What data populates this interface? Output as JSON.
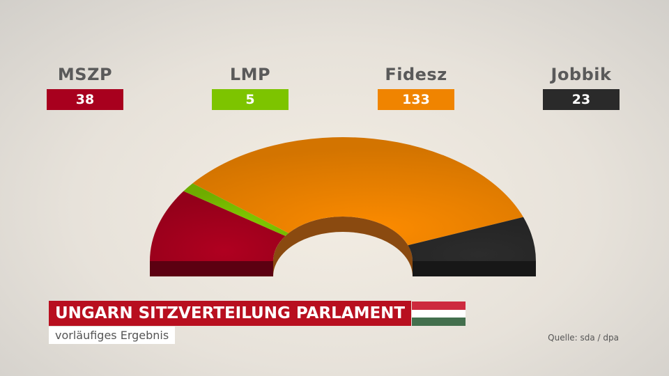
{
  "chart_data": {
    "type": "pie",
    "categories": [
      "MSZP",
      "LMP",
      "Fidesz",
      "Jobbik"
    ],
    "values": [
      38,
      5,
      133,
      23
    ],
    "colors": [
      "#a8001e",
      "#7dc400",
      "#f08400",
      "#2a2a2a"
    ],
    "title": "UNGARN SITZVERTEILUNG PARLAMENT",
    "subtitle": "vorläufiges Ergebnis"
  },
  "source": "Quelle: sda / dpa",
  "flag_colors": [
    "#cd2a3e",
    "#ffffff",
    "#436f4d"
  ]
}
